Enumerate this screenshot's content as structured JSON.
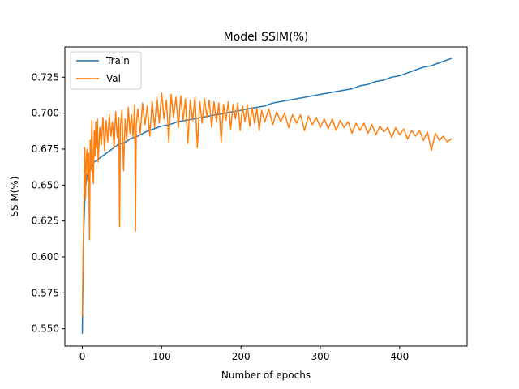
{
  "chart_data": {
    "type": "line",
    "title": "Model SSIM(%)",
    "xlabel": "Number of epochs",
    "ylabel": "SSIM(%)",
    "xlim": [
      -22,
      485
    ],
    "ylim": [
      0.538,
      0.746
    ],
    "xticks": [
      0,
      100,
      200,
      300,
      400
    ],
    "yticks": [
      0.55,
      0.575,
      0.6,
      0.625,
      0.65,
      0.675,
      0.7,
      0.725
    ],
    "ytick_labels": [
      "0.550",
      "0.575",
      "0.600",
      "0.625",
      "0.650",
      "0.675",
      "0.700",
      "0.725"
    ],
    "grid": false,
    "legend_position": "top-left",
    "series": [
      {
        "name": "Train",
        "color": "#1f77b4",
        "points": [
          [
            0,
            0.547
          ],
          [
            1,
            0.598
          ],
          [
            2,
            0.622
          ],
          [
            3,
            0.637
          ],
          [
            4,
            0.648
          ],
          [
            5,
            0.653
          ],
          [
            6,
            0.657
          ],
          [
            8,
            0.66
          ],
          [
            10,
            0.662
          ],
          [
            12,
            0.664
          ],
          [
            15,
            0.666
          ],
          [
            20,
            0.668
          ],
          [
            25,
            0.67
          ],
          [
            30,
            0.672
          ],
          [
            35,
            0.674
          ],
          [
            40,
            0.676
          ],
          [
            45,
            0.678
          ],
          [
            50,
            0.679
          ],
          [
            55,
            0.68
          ],
          [
            60,
            0.682
          ],
          [
            70,
            0.684
          ],
          [
            80,
            0.687
          ],
          [
            90,
            0.689
          ],
          [
            100,
            0.691
          ],
          [
            110,
            0.692
          ],
          [
            120,
            0.694
          ],
          [
            130,
            0.695
          ],
          [
            140,
            0.696
          ],
          [
            150,
            0.697
          ],
          [
            160,
            0.698
          ],
          [
            170,
            0.699
          ],
          [
            180,
            0.7
          ],
          [
            190,
            0.701
          ],
          [
            200,
            0.702
          ],
          [
            210,
            0.703
          ],
          [
            220,
            0.704
          ],
          [
            230,
            0.705
          ],
          [
            240,
            0.707
          ],
          [
            250,
            0.708
          ],
          [
            260,
            0.709
          ],
          [
            270,
            0.71
          ],
          [
            280,
            0.711
          ],
          [
            290,
            0.712
          ],
          [
            300,
            0.713
          ],
          [
            310,
            0.714
          ],
          [
            320,
            0.715
          ],
          [
            330,
            0.716
          ],
          [
            340,
            0.717
          ],
          [
            350,
            0.719
          ],
          [
            360,
            0.72
          ],
          [
            370,
            0.722
          ],
          [
            380,
            0.723
          ],
          [
            390,
            0.725
          ],
          [
            400,
            0.726
          ],
          [
            410,
            0.728
          ],
          [
            420,
            0.73
          ],
          [
            430,
            0.732
          ],
          [
            440,
            0.733
          ],
          [
            450,
            0.735
          ],
          [
            460,
            0.737
          ],
          [
            465,
            0.738
          ]
        ]
      },
      {
        "name": "Val",
        "color": "#ff7f0e",
        "points": [
          [
            0,
            0.559
          ],
          [
            1,
            0.605
          ],
          [
            2,
            0.632
          ],
          [
            3,
            0.676
          ],
          [
            4,
            0.641
          ],
          [
            5,
            0.668
          ],
          [
            6,
            0.675
          ],
          [
            7,
            0.653
          ],
          [
            8,
            0.672
          ],
          [
            9,
            0.612
          ],
          [
            10,
            0.681
          ],
          [
            11,
            0.66
          ],
          [
            12,
            0.695
          ],
          [
            13,
            0.664
          ],
          [
            14,
            0.651
          ],
          [
            15,
            0.688
          ],
          [
            16,
            0.67
          ],
          [
            17,
            0.694
          ],
          [
            18,
            0.676
          ],
          [
            19,
            0.696
          ],
          [
            20,
            0.666
          ],
          [
            22,
            0.69
          ],
          [
            24,
            0.678
          ],
          [
            26,
            0.697
          ],
          [
            28,
            0.674
          ],
          [
            30,
            0.695
          ],
          [
            32,
            0.68
          ],
          [
            34,
            0.699
          ],
          [
            36,
            0.684
          ],
          [
            38,
            0.694
          ],
          [
            40,
            0.676
          ],
          [
            42,
            0.701
          ],
          [
            44,
            0.683
          ],
          [
            46,
            0.697
          ],
          [
            47,
            0.621
          ],
          [
            48,
            0.69
          ],
          [
            50,
            0.702
          ],
          [
            52,
            0.66
          ],
          [
            54,
            0.696
          ],
          [
            56,
            0.681
          ],
          [
            58,
            0.704
          ],
          [
            60,
            0.686
          ],
          [
            62,
            0.699
          ],
          [
            64,
            0.683
          ],
          [
            66,
            0.706
          ],
          [
            67,
            0.618
          ],
          [
            68,
            0.692
          ],
          [
            70,
            0.703
          ],
          [
            73,
            0.686
          ],
          [
            76,
            0.707
          ],
          [
            79,
            0.692
          ],
          [
            82,
            0.705
          ],
          [
            85,
            0.684
          ],
          [
            88,
            0.708
          ],
          [
            91,
            0.69
          ],
          [
            94,
            0.711
          ],
          [
            97,
            0.693
          ],
          [
            100,
            0.714
          ],
          [
            103,
            0.696
          ],
          [
            106,
            0.709
          ],
          [
            109,
            0.68
          ],
          [
            112,
            0.713
          ],
          [
            115,
            0.697
          ],
          [
            118,
            0.711
          ],
          [
            121,
            0.69
          ],
          [
            124,
            0.712
          ],
          [
            127,
            0.695
          ],
          [
            130,
            0.71
          ],
          [
            133,
            0.679
          ],
          [
            136,
            0.709
          ],
          [
            139,
            0.695
          ],
          [
            142,
            0.711
          ],
          [
            145,
            0.676
          ],
          [
            148,
            0.708
          ],
          [
            151,
            0.693
          ],
          [
            154,
            0.71
          ],
          [
            157,
            0.697
          ],
          [
            160,
            0.709
          ],
          [
            163,
            0.69
          ],
          [
            166,
            0.708
          ],
          [
            169,
            0.694
          ],
          [
            172,
            0.707
          ],
          [
            175,
            0.68
          ],
          [
            178,
            0.706
          ],
          [
            181,
            0.695
          ],
          [
            184,
            0.708
          ],
          [
            187,
            0.689
          ],
          [
            190,
            0.706
          ],
          [
            193,
            0.696
          ],
          [
            196,
            0.707
          ],
          [
            199,
            0.688
          ],
          [
            202,
            0.705
          ],
          [
            205,
            0.694
          ],
          [
            208,
            0.706
          ],
          [
            211,
            0.691
          ],
          [
            214,
            0.704
          ],
          [
            217,
            0.693
          ],
          [
            220,
            0.703
          ],
          [
            223,
            0.688
          ],
          [
            226,
            0.702
          ],
          [
            230,
            0.694
          ],
          [
            235,
            0.703
          ],
          [
            240,
            0.692
          ],
          [
            245,
            0.701
          ],
          [
            250,
            0.694
          ],
          [
            255,
            0.7
          ],
          [
            260,
            0.69
          ],
          [
            265,
            0.699
          ],
          [
            270,
            0.693
          ],
          [
            275,
            0.699
          ],
          [
            280,
            0.688
          ],
          [
            285,
            0.698
          ],
          [
            290,
            0.692
          ],
          [
            295,
            0.697
          ],
          [
            300,
            0.69
          ],
          [
            305,
            0.696
          ],
          [
            310,
            0.689
          ],
          [
            315,
            0.696
          ],
          [
            320,
            0.688
          ],
          [
            325,
            0.695
          ],
          [
            330,
            0.69
          ],
          [
            335,
            0.694
          ],
          [
            340,
            0.686
          ],
          [
            345,
            0.693
          ],
          [
            350,
            0.688
          ],
          [
            355,
            0.693
          ],
          [
            360,
            0.686
          ],
          [
            365,
            0.692
          ],
          [
            370,
            0.685
          ],
          [
            375,
            0.691
          ],
          [
            380,
            0.687
          ],
          [
            385,
            0.69
          ],
          [
            390,
            0.683
          ],
          [
            395,
            0.69
          ],
          [
            400,
            0.685
          ],
          [
            405,
            0.689
          ],
          [
            410,
            0.682
          ],
          [
            415,
            0.688
          ],
          [
            420,
            0.684
          ],
          [
            425,
            0.688
          ],
          [
            430,
            0.681
          ],
          [
            435,
            0.687
          ],
          [
            440,
            0.674
          ],
          [
            445,
            0.686
          ],
          [
            450,
            0.681
          ],
          [
            455,
            0.684
          ],
          [
            460,
            0.68
          ],
          [
            465,
            0.682
          ]
        ]
      }
    ]
  }
}
